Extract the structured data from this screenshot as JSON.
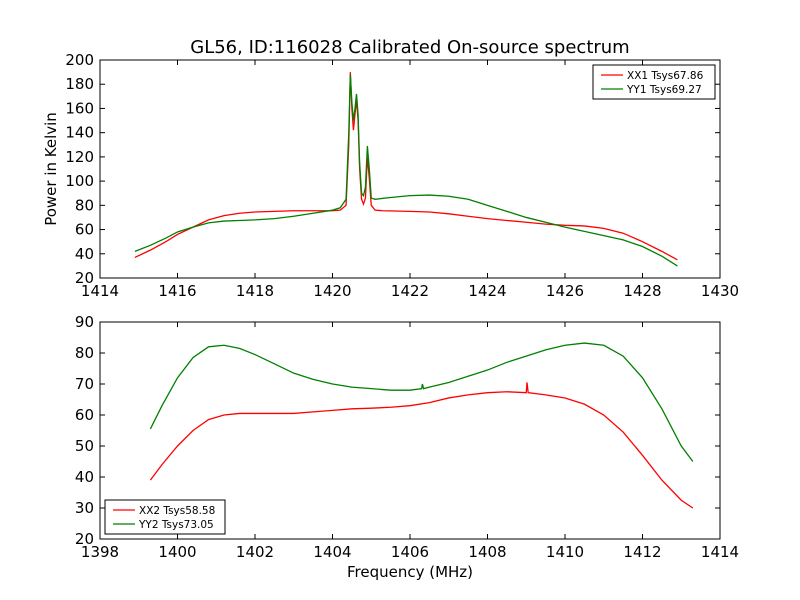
{
  "figure": {
    "title": "GL56, ID:116028 Calibrated On-source spectrum"
  },
  "chart_data": [
    {
      "type": "line",
      "title": "GL56, ID:116028 Calibrated On-source spectrum",
      "xlabel": "",
      "ylabel": "Power in Kelvin",
      "xlim": [
        1414,
        1430
      ],
      "ylim": [
        20,
        200
      ],
      "xticks": [
        1414,
        1416,
        1418,
        1420,
        1422,
        1424,
        1426,
        1428,
        1430
      ],
      "yticks": [
        20,
        40,
        60,
        80,
        100,
        120,
        140,
        160,
        180,
        200
      ],
      "grid": false,
      "legend_position": "top-right",
      "series": [
        {
          "name": "XX1 Tsys67.86",
          "color": "#ff0000",
          "points": [
            [
              1414.9,
              37
            ],
            [
              1415.3,
              43
            ],
            [
              1415.7,
              50
            ],
            [
              1416.0,
              56
            ],
            [
              1416.4,
              62
            ],
            [
              1416.8,
              68
            ],
            [
              1417.2,
              71.5
            ],
            [
              1417.6,
              73.5
            ],
            [
              1418.0,
              74.5
            ],
            [
              1418.5,
              75
            ],
            [
              1419.0,
              75.5
            ],
            [
              1419.5,
              75.5
            ],
            [
              1420.0,
              75.5
            ],
            [
              1420.2,
              76
            ],
            [
              1420.35,
              80
            ],
            [
              1420.42,
              130
            ],
            [
              1420.46,
              190
            ],
            [
              1420.5,
              160
            ],
            [
              1420.54,
              142
            ],
            [
              1420.58,
              155
            ],
            [
              1420.62,
              167
            ],
            [
              1420.66,
              150
            ],
            [
              1420.7,
              110
            ],
            [
              1420.75,
              85
            ],
            [
              1420.8,
              81
            ],
            [
              1420.85,
              86
            ],
            [
              1420.9,
              120
            ],
            [
              1420.95,
              102
            ],
            [
              1421.0,
              80
            ],
            [
              1421.1,
              76
            ],
            [
              1421.3,
              75.5
            ],
            [
              1422.0,
              75
            ],
            [
              1422.5,
              74.5
            ],
            [
              1423.0,
              73
            ],
            [
              1423.5,
              71
            ],
            [
              1424.0,
              69
            ],
            [
              1424.5,
              67.5
            ],
            [
              1425.0,
              66
            ],
            [
              1425.5,
              64.5
            ],
            [
              1426.0,
              63.5
            ],
            [
              1426.5,
              63
            ],
            [
              1427.0,
              61
            ],
            [
              1427.5,
              57
            ],
            [
              1428.0,
              50
            ],
            [
              1428.5,
              42
            ],
            [
              1428.9,
              35
            ]
          ]
        },
        {
          "name": "YY1 Tsys69.27",
          "color": "#008000",
          "points": [
            [
              1414.9,
              42
            ],
            [
              1415.3,
              47
            ],
            [
              1415.7,
              53
            ],
            [
              1416.0,
              58
            ],
            [
              1416.4,
              62
            ],
            [
              1416.8,
              65.5
            ],
            [
              1417.2,
              67
            ],
            [
              1417.6,
              67.5
            ],
            [
              1418.0,
              68
            ],
            [
              1418.5,
              69
            ],
            [
              1419.0,
              71
            ],
            [
              1419.5,
              73.5
            ],
            [
              1420.0,
              76
            ],
            [
              1420.2,
              78
            ],
            [
              1420.35,
              85
            ],
            [
              1420.42,
              140
            ],
            [
              1420.46,
              188
            ],
            [
              1420.5,
              165
            ],
            [
              1420.54,
              150
            ],
            [
              1420.58,
              160
            ],
            [
              1420.62,
              172
            ],
            [
              1420.66,
              155
            ],
            [
              1420.7,
              115
            ],
            [
              1420.75,
              90
            ],
            [
              1420.8,
              88
            ],
            [
              1420.85,
              95
            ],
            [
              1420.9,
              129
            ],
            [
              1420.95,
              110
            ],
            [
              1421.0,
              86
            ],
            [
              1421.1,
              85
            ],
            [
              1421.5,
              86.5
            ],
            [
              1422.0,
              88
            ],
            [
              1422.5,
              88.5
            ],
            [
              1423.0,
              87.5
            ],
            [
              1423.5,
              85
            ],
            [
              1424.0,
              80
            ],
            [
              1424.5,
              75
            ],
            [
              1425.0,
              70
            ],
            [
              1425.5,
              66
            ],
            [
              1426.0,
              62
            ],
            [
              1426.5,
              58.5
            ],
            [
              1427.0,
              55
            ],
            [
              1427.5,
              51.5
            ],
            [
              1428.0,
              46
            ],
            [
              1428.5,
              38
            ],
            [
              1428.9,
              30
            ]
          ]
        }
      ]
    },
    {
      "type": "line",
      "title": "",
      "xlabel": "Frequency (MHz)",
      "ylabel": "",
      "xlim": [
        1398,
        1414
      ],
      "ylim": [
        20,
        90
      ],
      "xticks": [
        1398,
        1400,
        1402,
        1404,
        1406,
        1408,
        1410,
        1412,
        1414
      ],
      "yticks": [
        20,
        30,
        40,
        50,
        60,
        70,
        80,
        90
      ],
      "grid": false,
      "legend_position": "bottom-left",
      "series": [
        {
          "name": "XX2 Tsys58.58",
          "color": "#ff0000",
          "points": [
            [
              1399.3,
              39
            ],
            [
              1399.6,
              44
            ],
            [
              1400.0,
              50
            ],
            [
              1400.4,
              55
            ],
            [
              1400.8,
              58.5
            ],
            [
              1401.2,
              60
            ],
            [
              1401.6,
              60.5
            ],
            [
              1402.0,
              60.5
            ],
            [
              1402.5,
              60.5
            ],
            [
              1403.0,
              60.5
            ],
            [
              1403.5,
              61
            ],
            [
              1404.0,
              61.5
            ],
            [
              1404.5,
              62
            ],
            [
              1405.0,
              62.2
            ],
            [
              1405.5,
              62.5
            ],
            [
              1406.0,
              63
            ],
            [
              1406.5,
              64
            ],
            [
              1407.0,
              65.5
            ],
            [
              1407.5,
              66.5
            ],
            [
              1408.0,
              67.2
            ],
            [
              1408.5,
              67.5
            ],
            [
              1409.0,
              67.2
            ],
            [
              1409.02,
              70.5
            ],
            [
              1409.05,
              67.2
            ],
            [
              1409.5,
              66.5
            ],
            [
              1410.0,
              65.5
            ],
            [
              1410.5,
              63.5
            ],
            [
              1411.0,
              60
            ],
            [
              1411.5,
              54.5
            ],
            [
              1412.0,
              47
            ],
            [
              1412.5,
              39
            ],
            [
              1413.0,
              32.5
            ],
            [
              1413.3,
              30
            ]
          ]
        },
        {
          "name": "YY2 Tsys73.05",
          "color": "#008000",
          "points": [
            [
              1399.3,
              55.5
            ],
            [
              1399.6,
              63
            ],
            [
              1400.0,
              72
            ],
            [
              1400.4,
              78.5
            ],
            [
              1400.8,
              82
            ],
            [
              1401.2,
              82.5
            ],
            [
              1401.6,
              81.5
            ],
            [
              1402.0,
              79.5
            ],
            [
              1402.5,
              76.5
            ],
            [
              1403.0,
              73.5
            ],
            [
              1403.5,
              71.5
            ],
            [
              1404.0,
              70
            ],
            [
              1404.5,
              69
            ],
            [
              1405.0,
              68.5
            ],
            [
              1405.5,
              68
            ],
            [
              1406.0,
              68
            ],
            [
              1406.3,
              68.5
            ],
            [
              1406.32,
              70
            ],
            [
              1406.35,
              68.5
            ],
            [
              1406.5,
              69
            ],
            [
              1407.0,
              70.5
            ],
            [
              1407.5,
              72.5
            ],
            [
              1408.0,
              74.5
            ],
            [
              1408.5,
              77
            ],
            [
              1409.0,
              79
            ],
            [
              1409.5,
              81
            ],
            [
              1410.0,
              82.5
            ],
            [
              1410.5,
              83.2
            ],
            [
              1411.0,
              82.5
            ],
            [
              1411.5,
              79
            ],
            [
              1412.0,
              72
            ],
            [
              1412.5,
              62
            ],
            [
              1413.0,
              50
            ],
            [
              1413.3,
              45
            ]
          ]
        }
      ]
    }
  ]
}
